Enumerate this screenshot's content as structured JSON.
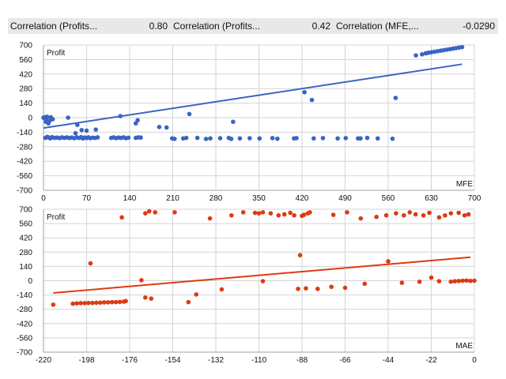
{
  "header": {
    "items": [
      {
        "label": "Correlation (Profits...",
        "value": "0.80"
      },
      {
        "label": "Correlation (Profits...",
        "value": "0.42"
      },
      {
        "label": "Correlation (MFE,...",
        "value": "-0.0290"
      }
    ]
  },
  "chart_data": [
    {
      "type": "scatter",
      "title": "",
      "ylabel": "Profit",
      "xlabel": "MFE",
      "xlim": [
        0,
        700
      ],
      "ylim": [
        -700,
        700
      ],
      "xticks": [
        0,
        70,
        140,
        210,
        280,
        350,
        420,
        490,
        560,
        630,
        700
      ],
      "yticks": [
        700,
        560,
        420,
        280,
        140,
        0,
        -140,
        -280,
        -420,
        -560,
        -700
      ],
      "grid": true,
      "color": "#3a64c4",
      "trend": {
        "x": [
          0,
          680
        ],
        "y": [
          -100,
          515
        ]
      },
      "points": [
        [
          0,
          0
        ],
        [
          2,
          -10
        ],
        [
          3,
          5
        ],
        [
          5,
          -25
        ],
        [
          6,
          8
        ],
        [
          4,
          -40
        ],
        [
          8,
          -55
        ],
        [
          10,
          -30
        ],
        [
          12,
          3
        ],
        [
          15,
          -15
        ],
        [
          3,
          -195
        ],
        [
          6,
          -185
        ],
        [
          8,
          -190
        ],
        [
          11,
          -200
        ],
        [
          14,
          -188
        ],
        [
          18,
          -195
        ],
        [
          22,
          -192
        ],
        [
          26,
          -197
        ],
        [
          30,
          -190
        ],
        [
          34,
          -195
        ],
        [
          38,
          -190
        ],
        [
          42,
          -196
        ],
        [
          46,
          -192
        ],
        [
          50,
          -198
        ],
        [
          54,
          -190
        ],
        [
          58,
          -195
        ],
        [
          61,
          -188
        ],
        [
          64,
          -200
        ],
        [
          67,
          -192
        ],
        [
          70,
          -196
        ],
        [
          73,
          -190
        ],
        [
          76,
          -198
        ],
        [
          80,
          -193
        ],
        [
          84,
          -195
        ],
        [
          88,
          -190
        ],
        [
          110,
          -195
        ],
        [
          114,
          -190
        ],
        [
          118,
          -197
        ],
        [
          122,
          -192
        ],
        [
          126,
          -195
        ],
        [
          130,
          -190
        ],
        [
          134,
          -198
        ],
        [
          138,
          -193
        ],
        [
          150,
          -195
        ],
        [
          154,
          -190
        ],
        [
          158,
          -192
        ],
        [
          40,
          0
        ],
        [
          52,
          -150
        ],
        [
          55,
          -70
        ],
        [
          62,
          -120
        ],
        [
          70,
          -125
        ],
        [
          85,
          -115
        ],
        [
          125,
          15
        ],
        [
          150,
          -55
        ],
        [
          153,
          -25
        ],
        [
          188,
          -90
        ],
        [
          200,
          -95
        ],
        [
          237,
          35
        ],
        [
          308,
          -40
        ],
        [
          209,
          -200
        ],
        [
          213,
          -205
        ],
        [
          227,
          -200
        ],
        [
          232,
          -195
        ],
        [
          250,
          -195
        ],
        [
          264,
          -205
        ],
        [
          271,
          -200
        ],
        [
          287,
          -198
        ],
        [
          301,
          -195
        ],
        [
          305,
          -205
        ],
        [
          319,
          -200
        ],
        [
          335,
          -198
        ],
        [
          351,
          -200
        ],
        [
          372,
          -197
        ],
        [
          380,
          -203
        ],
        [
          407,
          -200
        ],
        [
          411,
          -197
        ],
        [
          439,
          -200
        ],
        [
          454,
          -197
        ],
        [
          478,
          -200
        ],
        [
          491,
          -197
        ],
        [
          511,
          -200
        ],
        [
          515,
          -200
        ],
        [
          526,
          -195
        ],
        [
          543,
          -200
        ],
        [
          567,
          -203
        ],
        [
          424,
          245
        ],
        [
          436,
          170
        ],
        [
          572,
          190
        ],
        [
          605,
          600
        ],
        [
          615,
          610
        ],
        [
          621,
          620
        ],
        [
          625,
          625
        ],
        [
          630,
          630
        ],
        [
          635,
          635
        ],
        [
          640,
          640
        ],
        [
          645,
          645
        ],
        [
          650,
          650
        ],
        [
          655,
          655
        ],
        [
          660,
          660
        ],
        [
          665,
          665
        ],
        [
          670,
          670
        ],
        [
          675,
          675
        ],
        [
          680,
          680
        ]
      ]
    },
    {
      "type": "scatter",
      "title": "",
      "ylabel": "Profit",
      "xlabel": "MAE",
      "xlim": [
        -220,
        0
      ],
      "ylim": [
        -700,
        700
      ],
      "xticks": [
        -220,
        -198,
        -176,
        -154,
        -132,
        -110,
        -88,
        -66,
        -44,
        -22,
        0
      ],
      "yticks": [
        700,
        560,
        420,
        280,
        140,
        0,
        -140,
        -280,
        -420,
        -560,
        -700
      ],
      "grid": true,
      "color": "#dd3a12",
      "trend": {
        "x": [
          -215,
          -2
        ],
        "y": [
          -120,
          230
        ]
      },
      "points": [
        [
          -215,
          -235
        ],
        [
          -205,
          -225
        ],
        [
          -203,
          -222
        ],
        [
          -201,
          -220
        ],
        [
          -199,
          -220
        ],
        [
          -197,
          -218
        ],
        [
          -195,
          -218
        ],
        [
          -193,
          -216
        ],
        [
          -191,
          -215
        ],
        [
          -189,
          -212
        ],
        [
          -187,
          -212
        ],
        [
          -185,
          -210
        ],
        [
          -183,
          -210
        ],
        [
          -181,
          -208
        ],
        [
          -179,
          -205
        ],
        [
          -178,
          -200
        ],
        [
          -196,
          170
        ],
        [
          -180,
          620
        ],
        [
          -170,
          5
        ],
        [
          -168,
          660
        ],
        [
          -166,
          680
        ],
        [
          -163,
          670
        ],
        [
          -168,
          -165
        ],
        [
          -165,
          -175
        ],
        [
          -146,
          -210
        ],
        [
          -153,
          670
        ],
        [
          -142,
          -135
        ],
        [
          -135,
          610
        ],
        [
          -124,
          640
        ],
        [
          -118,
          670
        ],
        [
          -112,
          665
        ],
        [
          -110,
          660
        ],
        [
          -108,
          670
        ],
        [
          -104,
          660
        ],
        [
          -100,
          640
        ],
        [
          -97,
          650
        ],
        [
          -94,
          665
        ],
        [
          -92,
          640
        ],
        [
          -89,
          250
        ],
        [
          -88,
          635
        ],
        [
          -87,
          645
        ],
        [
          -85,
          660
        ],
        [
          -84,
          670
        ],
        [
          -72,
          645
        ],
        [
          -65,
          670
        ],
        [
          -58,
          610
        ],
        [
          -50,
          625
        ],
        [
          -45,
          640
        ],
        [
          -40,
          660
        ],
        [
          -36,
          640
        ],
        [
          -33,
          670
        ],
        [
          -30,
          650
        ],
        [
          -26,
          640
        ],
        [
          -23,
          665
        ],
        [
          -18,
          620
        ],
        [
          -15,
          640
        ],
        [
          -12,
          660
        ],
        [
          -8,
          665
        ],
        [
          -5,
          640
        ],
        [
          -3,
          650
        ],
        [
          -129,
          -85
        ],
        [
          -108,
          -5
        ],
        [
          -90,
          -80
        ],
        [
          -86,
          -75
        ],
        [
          -80,
          -80
        ],
        [
          -73,
          -60
        ],
        [
          -66,
          -70
        ],
        [
          -56,
          -30
        ],
        [
          -44,
          190
        ],
        [
          -37,
          -20
        ],
        [
          -28,
          -10
        ],
        [
          -22,
          30
        ],
        [
          -18,
          -5
        ],
        [
          -12,
          -10
        ],
        [
          -10,
          -5
        ],
        [
          -8,
          -3
        ],
        [
          -6,
          0
        ],
        [
          -4,
          2
        ],
        [
          -2,
          -2
        ],
        [
          0,
          0
        ]
      ]
    }
  ]
}
